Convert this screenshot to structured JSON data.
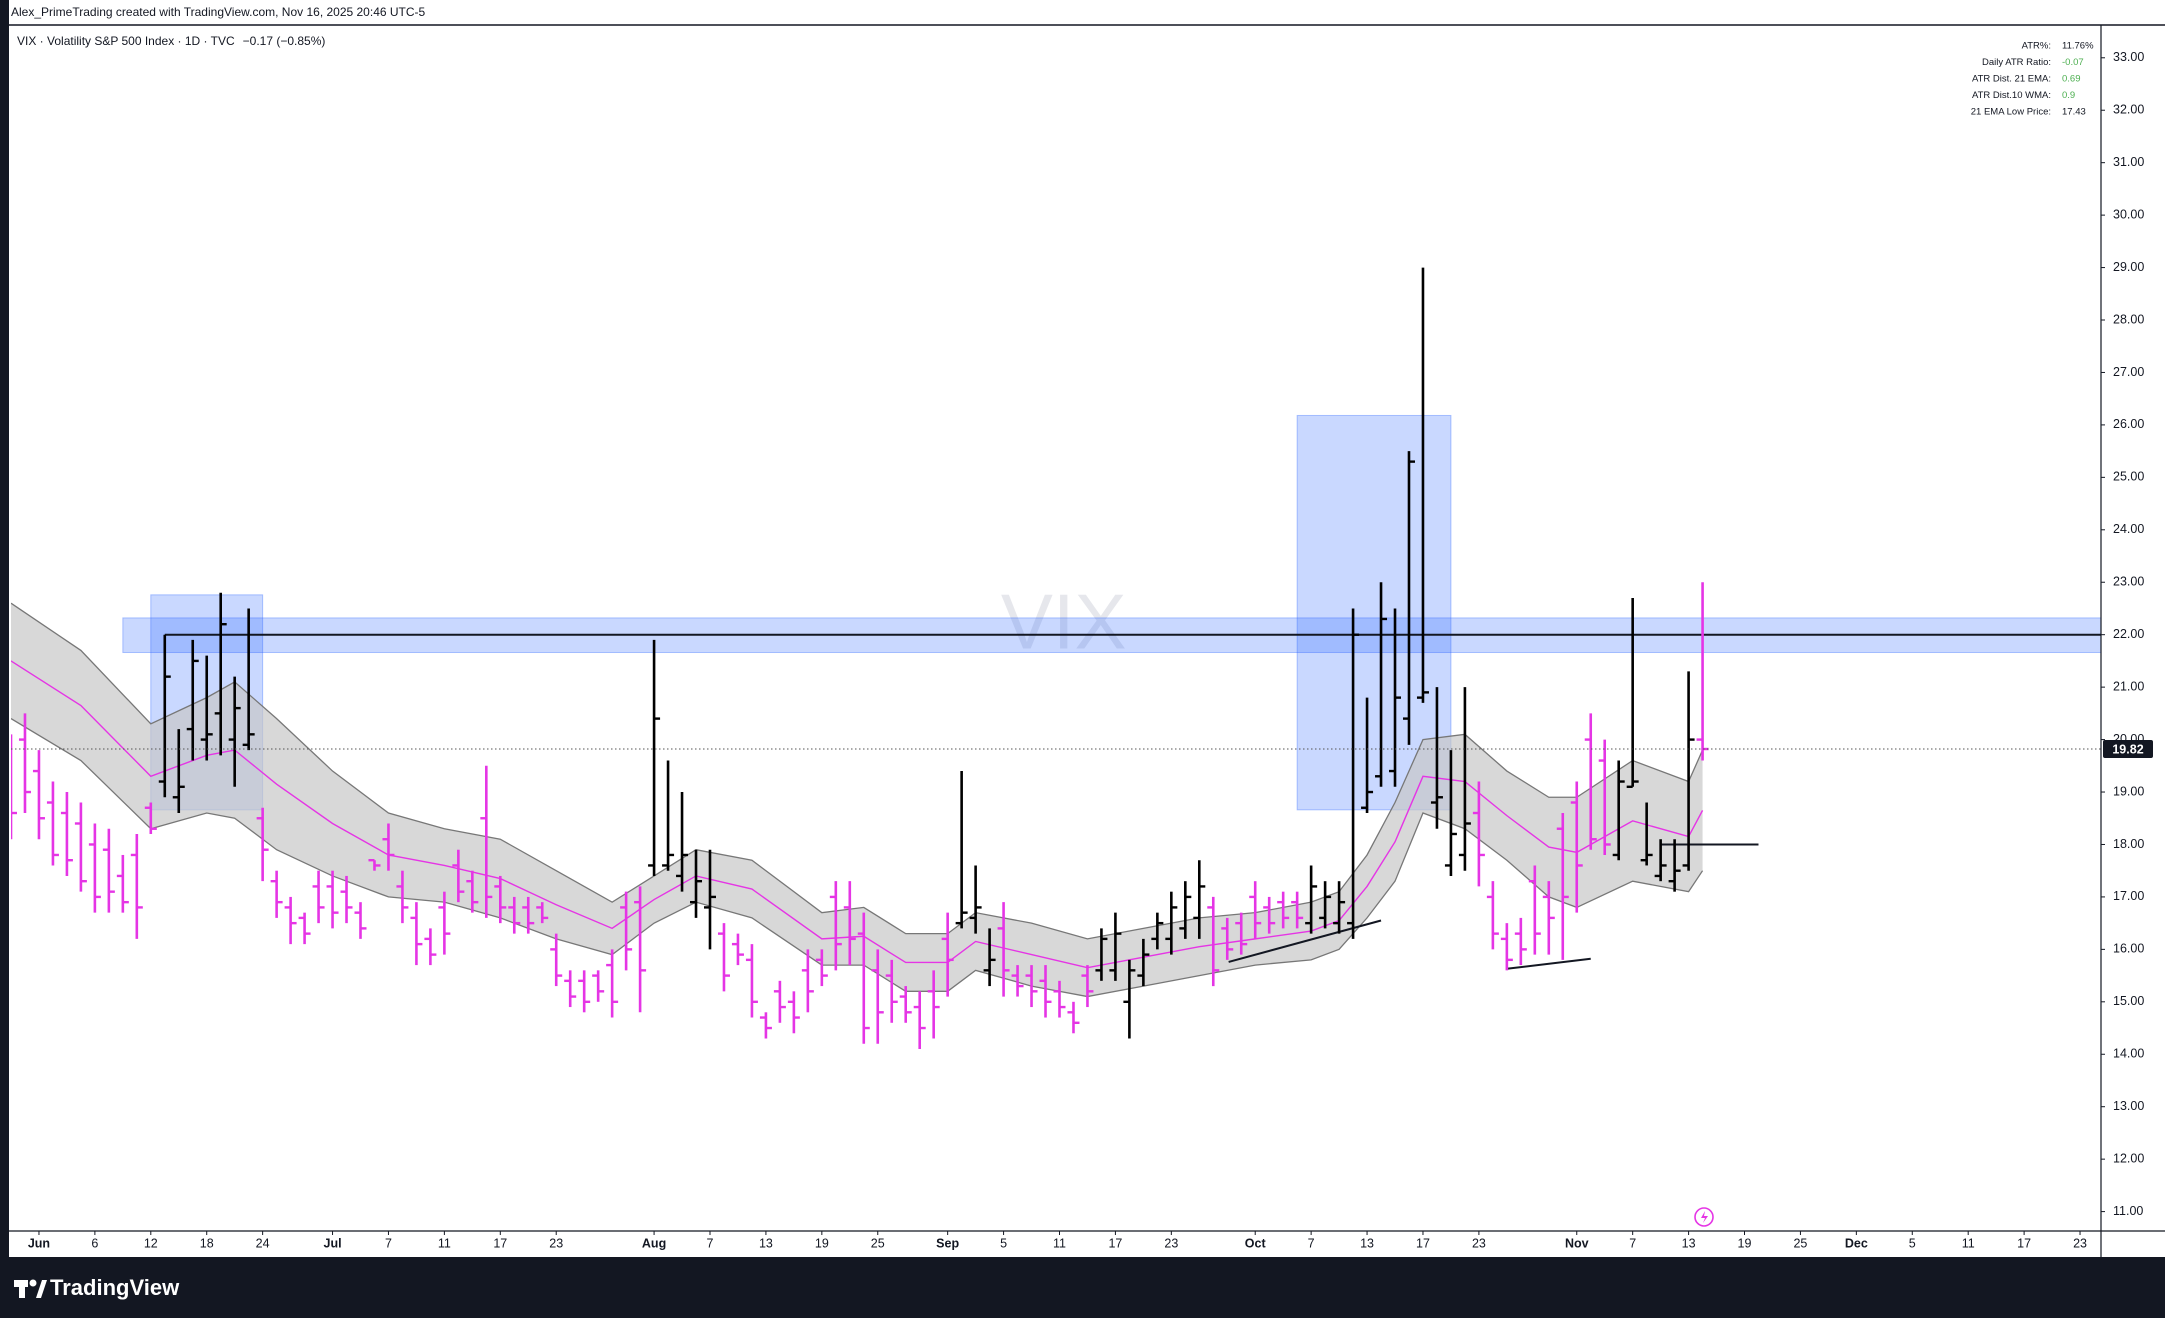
{
  "chart_data": {
    "type": "ohlc",
    "credit": "Alex_PrimeTrading created with TradingView.com, Nov 16, 2025 20:46 UTC-5",
    "legend": {
      "symbol": "VIX · Volatility S&P 500 Index · 1D · TVC",
      "change": "−0.17 (−0.85%)"
    },
    "watermark": "VIX",
    "brand": "TradingView",
    "info_table": [
      {
        "label": "ATR%:",
        "value": "11.76%",
        "color": "#131722"
      },
      {
        "label": "Daily ATR Ratio:",
        "value": "-0.07",
        "color": "#4caf50"
      },
      {
        "label": "ATR Dist. 21 EMA:",
        "value": "0.69",
        "color": "#4caf50"
      },
      {
        "label": "ATR Dist.10 WMA:",
        "value": "0.9",
        "color": "#4caf50"
      },
      {
        "label": "21 EMA Low Price:",
        "value": "17.43",
        "color": "#131722"
      }
    ],
    "up_color": "#000000",
    "down_color": "#e535e5",
    "xlim": [
      -2,
      147.5
    ],
    "ylim": [
      10.63,
      33.32
    ],
    "xticks": [
      {
        "value": 0,
        "label": "Jun"
      },
      {
        "value": 4,
        "label": "6"
      },
      {
        "value": 8,
        "label": "12"
      },
      {
        "value": 12,
        "label": "18"
      },
      {
        "value": 16,
        "label": "24"
      },
      {
        "value": 21,
        "label": "Jul"
      },
      {
        "value": 25,
        "label": "7"
      },
      {
        "value": 29,
        "label": "11"
      },
      {
        "value": 33,
        "label": "17"
      },
      {
        "value": 37,
        "label": "23"
      },
      {
        "value": 44,
        "label": "Aug"
      },
      {
        "value": 48,
        "label": "7"
      },
      {
        "value": 52,
        "label": "13"
      },
      {
        "value": 56,
        "label": "19"
      },
      {
        "value": 60,
        "label": "25"
      },
      {
        "value": 65,
        "label": "Sep"
      },
      {
        "value": 69,
        "label": "5"
      },
      {
        "value": 73,
        "label": "11"
      },
      {
        "value": 77,
        "label": "17"
      },
      {
        "value": 81,
        "label": "23"
      },
      {
        "value": 87,
        "label": "Oct"
      },
      {
        "value": 91,
        "label": "7"
      },
      {
        "value": 95,
        "label": "13"
      },
      {
        "value": 99,
        "label": "17"
      },
      {
        "value": 103,
        "label": "23"
      },
      {
        "value": 110,
        "label": "Nov"
      },
      {
        "value": 114,
        "label": "7"
      },
      {
        "value": 118,
        "label": "13"
      },
      {
        "value": 122,
        "label": "19"
      },
      {
        "value": 126,
        "label": "25"
      },
      {
        "value": 130,
        "label": "Dec"
      },
      {
        "value": 134,
        "label": "5"
      },
      {
        "value": 138,
        "label": "11"
      },
      {
        "value": 142,
        "label": "17"
      },
      {
        "value": 146,
        "label": "23"
      }
    ],
    "yticks": [
      {
        "value": 11,
        "label": "11.00"
      },
      {
        "value": 12,
        "label": "12.00"
      },
      {
        "value": 13,
        "label": "13.00"
      },
      {
        "value": 14,
        "label": "14.00"
      },
      {
        "value": 15,
        "label": "15.00"
      },
      {
        "value": 16,
        "label": "16.00"
      },
      {
        "value": 17,
        "label": "17.00"
      },
      {
        "value": 18,
        "label": "18.00"
      },
      {
        "value": 19,
        "label": "19.00"
      },
      {
        "value": 20,
        "label": "20.00"
      },
      {
        "value": 21,
        "label": "21.00"
      },
      {
        "value": 22,
        "label": "22.00"
      },
      {
        "value": 23,
        "label": "23.00"
      },
      {
        "value": 24,
        "label": "24.00"
      },
      {
        "value": 25,
        "label": "25.00"
      },
      {
        "value": 26,
        "label": "26.00"
      },
      {
        "value": 27,
        "label": "27.00"
      },
      {
        "value": 28,
        "label": "28.00"
      },
      {
        "value": 29,
        "label": "29.00"
      },
      {
        "value": 30,
        "label": "30.00"
      },
      {
        "value": 31,
        "label": "31.00"
      },
      {
        "value": 32,
        "label": "32.00"
      },
      {
        "value": 33,
        "label": "33.00"
      }
    ],
    "x": [
      -2,
      -1,
      0,
      1,
      2,
      3,
      4,
      5,
      6,
      7,
      8,
      9,
      10,
      11,
      12,
      13,
      14,
      15,
      16,
      17,
      18,
      19,
      20,
      21,
      22,
      23,
      24,
      25,
      26,
      27,
      28,
      29,
      30,
      31,
      32,
      33,
      34,
      35,
      36,
      37,
      38,
      39,
      40,
      41,
      42,
      43,
      44,
      45,
      46,
      47,
      48,
      49,
      50,
      51,
      52,
      53,
      54,
      55,
      56,
      57,
      58,
      59,
      60,
      61,
      62,
      63,
      64,
      65,
      66,
      67,
      68,
      69,
      70,
      71,
      72,
      73,
      74,
      75,
      76,
      77,
      78,
      79,
      80,
      81,
      82,
      83,
      84,
      85,
      86,
      87,
      88,
      89,
      90,
      91,
      92,
      93,
      94,
      95,
      96,
      97,
      98,
      99,
      100,
      101,
      102,
      103,
      104,
      105,
      106,
      107,
      108,
      109,
      110,
      111,
      112,
      113,
      114,
      115,
      116,
      117,
      118,
      119
    ],
    "bars": [
      [
        19.6,
        20.1,
        18.1,
        18.6
      ],
      [
        20.0,
        20.5,
        18.6,
        19.0
      ],
      [
        19.4,
        19.8,
        18.1,
        18.5
      ],
      [
        18.8,
        19.2,
        17.6,
        17.8
      ],
      [
        18.6,
        19.0,
        17.4,
        17.7
      ],
      [
        18.4,
        18.8,
        17.1,
        17.3
      ],
      [
        18.0,
        18.4,
        16.7,
        17.0
      ],
      [
        17.9,
        18.3,
        16.7,
        17.1
      ],
      [
        17.4,
        17.8,
        16.7,
        16.9
      ],
      [
        17.8,
        18.2,
        16.2,
        16.8
      ],
      [
        18.7,
        18.8,
        18.2,
        18.3
      ],
      [
        19.2,
        22.0,
        18.9,
        21.2
      ],
      [
        18.9,
        20.2,
        18.6,
        19.1
      ],
      [
        20.2,
        21.9,
        19.6,
        21.5
      ],
      [
        20.0,
        21.6,
        19.6,
        20.1
      ],
      [
        20.5,
        22.8,
        19.7,
        22.2
      ],
      [
        20.0,
        21.2,
        19.1,
        20.6
      ],
      [
        19.9,
        22.5,
        19.8,
        20.1
      ],
      [
        18.5,
        18.7,
        17.3,
        17.9
      ],
      [
        17.3,
        17.5,
        16.6,
        16.9
      ],
      [
        16.8,
        17.0,
        16.1,
        16.5
      ],
      [
        16.6,
        16.7,
        16.1,
        16.3
      ],
      [
        17.2,
        17.5,
        16.5,
        16.8
      ],
      [
        17.2,
        17.5,
        16.4,
        16.7
      ],
      [
        17.1,
        17.4,
        16.5,
        16.8
      ],
      [
        16.7,
        16.9,
        16.2,
        16.4
      ],
      [
        17.7,
        17.7,
        17.5,
        17.6
      ],
      [
        18.1,
        18.4,
        17.5,
        17.8
      ],
      [
        17.2,
        17.5,
        16.5,
        16.8
      ],
      [
        16.6,
        16.9,
        15.7,
        16.1
      ],
      [
        16.2,
        16.4,
        15.7,
        15.9
      ],
      [
        16.8,
        17.1,
        15.9,
        16.3
      ],
      [
        17.6,
        17.9,
        16.9,
        17.1
      ],
      [
        17.3,
        17.5,
        16.7,
        16.9
      ],
      [
        18.5,
        19.5,
        16.6,
        17.0
      ],
      [
        17.2,
        17.4,
        16.5,
        16.8
      ],
      [
        16.8,
        17.0,
        16.3,
        16.5
      ],
      [
        16.8,
        17.0,
        16.3,
        16.5
      ],
      [
        16.8,
        16.9,
        16.5,
        16.6
      ],
      [
        16.0,
        16.3,
        15.3,
        15.5
      ],
      [
        15.4,
        15.6,
        14.9,
        15.1
      ],
      [
        15.4,
        15.6,
        14.8,
        15.0
      ],
      [
        15.5,
        15.6,
        15.0,
        15.2
      ],
      [
        15.7,
        16.0,
        14.7,
        15.0
      ],
      [
        16.8,
        17.1,
        15.6,
        16.0
      ],
      [
        16.9,
        17.2,
        14.8,
        15.6
      ],
      [
        17.6,
        21.9,
        17.4,
        20.4
      ],
      [
        17.6,
        19.6,
        17.5,
        17.8
      ],
      [
        17.4,
        19.0,
        17.1,
        17.8
      ],
      [
        16.9,
        17.9,
        16.6,
        17.3
      ],
      [
        16.8,
        17.9,
        16.0,
        17.0
      ],
      [
        16.3,
        16.5,
        15.2,
        15.5
      ],
      [
        16.1,
        16.3,
        15.7,
        15.9
      ],
      [
        15.8,
        16.1,
        14.7,
        15.0
      ],
      [
        14.7,
        14.8,
        14.3,
        14.5
      ],
      [
        15.2,
        15.4,
        14.6,
        14.9
      ],
      [
        15.0,
        15.2,
        14.4,
        14.7
      ],
      [
        15.6,
        16.0,
        14.8,
        15.2
      ],
      [
        15.8,
        16.0,
        15.3,
        15.5
      ],
      [
        17.0,
        17.3,
        15.6,
        16.1
      ],
      [
        16.8,
        17.3,
        15.7,
        16.2
      ],
      [
        16.3,
        16.7,
        14.2,
        14.5
      ],
      [
        15.6,
        16.0,
        14.2,
        14.8
      ],
      [
        15.5,
        15.8,
        14.6,
        15.0
      ],
      [
        15.1,
        15.3,
        14.6,
        14.8
      ],
      [
        14.9,
        15.2,
        14.1,
        14.5
      ],
      [
        15.2,
        15.6,
        14.3,
        14.9
      ],
      [
        16.2,
        16.7,
        15.1,
        15.8
      ],
      [
        16.5,
        19.4,
        16.4,
        16.7
      ],
      [
        16.6,
        17.6,
        16.3,
        16.8
      ],
      [
        15.6,
        16.4,
        15.3,
        15.8
      ],
      [
        16.4,
        16.9,
        15.1,
        15.6
      ],
      [
        15.5,
        15.7,
        15.1,
        15.3
      ],
      [
        15.5,
        15.7,
        14.9,
        15.2
      ],
      [
        15.4,
        15.7,
        14.7,
        15.0
      ],
      [
        15.2,
        15.4,
        14.7,
        14.9
      ],
      [
        14.8,
        15.0,
        14.4,
        14.6
      ],
      [
        15.5,
        15.7,
        14.9,
        15.2
      ],
      [
        15.6,
        16.4,
        15.4,
        16.2
      ],
      [
        15.6,
        16.7,
        15.4,
        16.3
      ],
      [
        15.0,
        15.8,
        14.3,
        15.6
      ],
      [
        15.5,
        16.2,
        15.3,
        15.9
      ],
      [
        16.2,
        16.7,
        16.0,
        16.5
      ],
      [
        16.2,
        17.1,
        15.9,
        16.8
      ],
      [
        16.4,
        17.3,
        16.2,
        17.0
      ],
      [
        16.6,
        17.7,
        16.2,
        17.2
      ],
      [
        16.8,
        17.0,
        15.3,
        15.6
      ],
      [
        16.4,
        16.6,
        15.8,
        16.0
      ],
      [
        16.5,
        16.7,
        15.9,
        16.1
      ],
      [
        17.0,
        17.3,
        16.2,
        16.5
      ],
      [
        16.8,
        17.0,
        16.3,
        16.5
      ],
      [
        16.9,
        17.1,
        16.4,
        16.6
      ],
      [
        16.9,
        17.1,
        16.4,
        16.6
      ],
      [
        16.5,
        17.6,
        16.3,
        17.2
      ],
      [
        16.6,
        17.3,
        16.4,
        17.0
      ],
      [
        16.5,
        17.3,
        16.3,
        16.9
      ],
      [
        16.5,
        22.5,
        16.2,
        22.0
      ],
      [
        18.7,
        20.8,
        18.6,
        19.0
      ],
      [
        19.3,
        23.0,
        19.1,
        22.3
      ],
      [
        19.4,
        22.5,
        19.1,
        20.8
      ],
      [
        20.4,
        25.5,
        19.9,
        25.3
      ],
      [
        20.8,
        29.0,
        20.7,
        20.9
      ],
      [
        18.8,
        21.0,
        18.3,
        18.9
      ],
      [
        17.6,
        19.8,
        17.4,
        18.2
      ],
      [
        17.8,
        21.0,
        17.5,
        18.4
      ],
      [
        18.6,
        19.2,
        17.2,
        17.8
      ],
      [
        17.0,
        17.3,
        16.0,
        16.3
      ],
      [
        16.2,
        16.5,
        15.6,
        15.8
      ],
      [
        16.3,
        16.6,
        15.7,
        16.0
      ],
      [
        17.3,
        17.6,
        15.9,
        16.3
      ],
      [
        17.0,
        17.3,
        15.9,
        16.6
      ],
      [
        18.3,
        18.6,
        15.8,
        17.0
      ],
      [
        18.8,
        19.2,
        16.7,
        17.6
      ],
      [
        20.0,
        20.5,
        17.9,
        18.1
      ],
      [
        19.6,
        20.0,
        17.8,
        18.0
      ],
      [
        17.8,
        19.6,
        17.7,
        19.2
      ],
      [
        19.1,
        22.7,
        19.1,
        19.2
      ],
      [
        17.7,
        18.8,
        17.6,
        17.8
      ],
      [
        17.4,
        18.1,
        17.3,
        17.6
      ],
      [
        17.3,
        18.1,
        17.1,
        17.5
      ],
      [
        17.6,
        21.3,
        17.5,
        20.0
      ],
      [
        20.0,
        23.0,
        19.6,
        19.82
      ]
    ],
    "band": {
      "fill": "#c8c8c8",
      "line_color": "#777777",
      "ema_color": "#e535e5",
      "x": [
        -2,
        3,
        8,
        12,
        14,
        17,
        21,
        25,
        29,
        33,
        37,
        41,
        44,
        47,
        51,
        56,
        59,
        62,
        65,
        67,
        71,
        75,
        79,
        83,
        87,
        91,
        93,
        95,
        97,
        99,
        102,
        105,
        108,
        110,
        114,
        118,
        119
      ],
      "upper": [
        22.6,
        21.7,
        20.3,
        20.8,
        21.1,
        20.4,
        19.4,
        18.6,
        18.3,
        18.1,
        17.5,
        16.9,
        17.4,
        17.9,
        17.7,
        16.7,
        16.8,
        16.3,
        16.3,
        16.7,
        16.5,
        16.2,
        16.4,
        16.6,
        16.7,
        16.9,
        17.1,
        17.8,
        18.8,
        20.0,
        20.1,
        19.4,
        18.9,
        18.9,
        19.6,
        19.2,
        19.8
      ],
      "lower": [
        20.4,
        19.6,
        18.3,
        18.6,
        18.5,
        17.9,
        17.4,
        17.0,
        16.9,
        16.6,
        16.2,
        15.9,
        16.5,
        16.9,
        16.6,
        15.7,
        15.7,
        15.2,
        15.2,
        15.6,
        15.3,
        15.1,
        15.3,
        15.5,
        15.7,
        15.8,
        16.0,
        16.6,
        17.3,
        18.6,
        18.3,
        17.7,
        17.0,
        16.8,
        17.3,
        17.1,
        17.5
      ],
      "ema": [
        21.5,
        20.65,
        19.3,
        19.7,
        19.8,
        19.15,
        18.4,
        17.8,
        17.6,
        17.35,
        16.85,
        16.4,
        16.95,
        17.4,
        17.15,
        16.2,
        16.25,
        15.75,
        15.75,
        16.15,
        15.9,
        15.65,
        15.85,
        16.05,
        16.2,
        16.35,
        16.55,
        17.2,
        18.05,
        19.3,
        19.2,
        18.55,
        17.95,
        17.85,
        18.45,
        18.15,
        18.65
      ]
    },
    "boxes": [
      {
        "x": [
          8,
          16
        ],
        "y": [
          18.66,
          22.76
        ],
        "color": "#2962ff"
      },
      {
        "x": [
          90,
          101
        ],
        "y": [
          18.66,
          26.18
        ],
        "color": "#2962ff"
      },
      {
        "x": [
          6,
          147.5
        ],
        "y": [
          21.66,
          22.32
        ],
        "color": "#2962ff"
      }
    ],
    "hlines": [
      {
        "value": 22.0,
        "x": [
          9,
          147.5
        ],
        "color": "#131722"
      },
      {
        "value": 18.0,
        "x": [
          116,
          123
        ],
        "color": "#131722"
      }
    ],
    "trendlines": [
      {
        "x": [
          85.1,
          96
        ],
        "y": [
          15.76,
          16.55
        ],
        "color": "#131722"
      },
      {
        "x": [
          105,
          111
        ],
        "y": [
          15.63,
          15.82
        ],
        "color": "#131722"
      }
    ]
  }
}
